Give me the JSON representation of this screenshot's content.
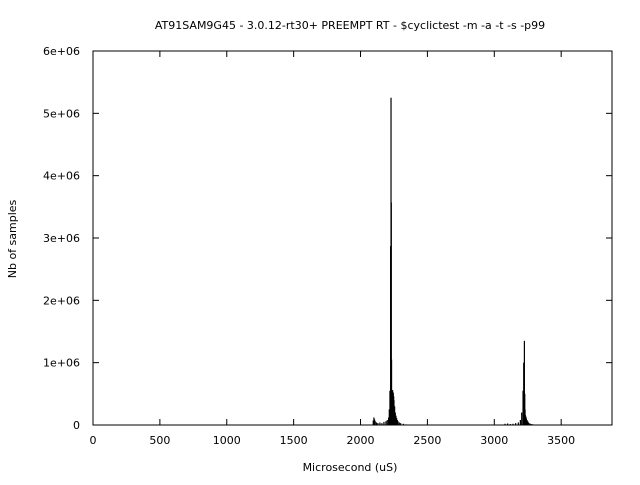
{
  "chart_data": {
    "type": "bar",
    "title": "AT91SAM9G45 - 3.0.12-rt30+ PREEMPT RT  - $cyclictest -m -a -t -s -p99",
    "xlabel": "Microsecond (uS)",
    "ylabel": "Nb of samples",
    "xlim": [
      0,
      3880
    ],
    "ylim": [
      0,
      6000000
    ],
    "x_ticks": [
      0,
      500,
      1000,
      1500,
      2000,
      2500,
      3000,
      3500
    ],
    "x_tick_labels": [
      "0",
      "500",
      "1000",
      "1500",
      "2000",
      "2500",
      "3000",
      "3500"
    ],
    "y_ticks": [
      0,
      1000000,
      2000000,
      3000000,
      4000000,
      5000000,
      6000000
    ],
    "y_tick_labels": [
      "0",
      "1e+06",
      "2e+06",
      "3e+06",
      "4e+06",
      "5e+06",
      "6e+06"
    ],
    "grid": false,
    "legend": "none",
    "bar_color": "#000000",
    "series": [
      {
        "x": [
          2095,
          2100,
          2105,
          2110,
          2120,
          2130,
          2145,
          2160,
          2175,
          2190,
          2200,
          2210,
          2215,
          2220,
          2225,
          2228,
          2230,
          2232,
          2235,
          2238,
          2240,
          2242,
          2245,
          2248,
          2250,
          2255,
          2260,
          2265,
          2270,
          2275,
          2280,
          2290,
          2300,
          2320,
          2340,
          3080,
          3100,
          3120,
          3140,
          3160,
          3180,
          3195,
          3205,
          3215,
          3220,
          3225,
          3228,
          3230,
          3232,
          3235,
          3238,
          3240,
          3245,
          3250,
          3255,
          3260,
          3270,
          3280,
          3290,
          3300,
          3320,
          3340
        ],
        "y": [
          70000,
          120000,
          90000,
          60000,
          40000,
          30000,
          40000,
          30000,
          50000,
          60000,
          80000,
          120000,
          250000,
          550000,
          2870000,
          5250000,
          3570000,
          1050000,
          550000,
          500000,
          560000,
          480000,
          520000,
          460000,
          400000,
          300000,
          200000,
          150000,
          110000,
          80000,
          60000,
          40000,
          30000,
          20000,
          10000,
          20000,
          25000,
          15000,
          20000,
          30000,
          40000,
          80000,
          200000,
          550000,
          1000000,
          1350000,
          500000,
          250000,
          160000,
          140000,
          120000,
          100000,
          80000,
          60000,
          40000,
          30000,
          20000,
          15000,
          10000,
          8000,
          5000,
          3000
        ]
      }
    ]
  }
}
